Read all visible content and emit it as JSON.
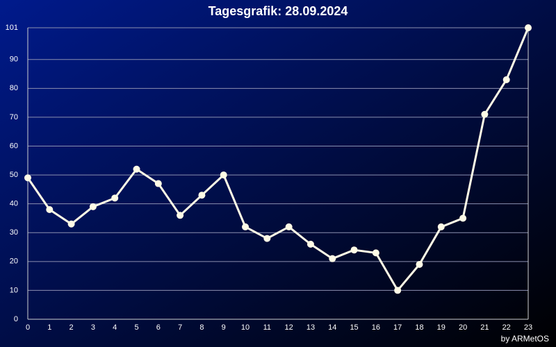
{
  "chart_data": {
    "type": "line",
    "title": "Tagesgrafik: 28.09.2024",
    "credit": "by ARMetOS",
    "x": [
      0,
      1,
      2,
      3,
      4,
      5,
      6,
      7,
      8,
      9,
      10,
      11,
      12,
      13,
      14,
      15,
      16,
      17,
      18,
      19,
      20,
      21,
      22,
      23
    ],
    "series": [
      {
        "color": "#fffbe6",
        "values": [
          49,
          38,
          33,
          39,
          42,
          52,
          47,
          36,
          43,
          50,
          32,
          28,
          32,
          26,
          21,
          24,
          23,
          10,
          19,
          32,
          35,
          71,
          83,
          101
        ]
      }
    ],
    "xlim": [
      0,
      23
    ],
    "xticks": [
      0,
      1,
      2,
      3,
      4,
      5,
      6,
      7,
      8,
      9,
      10,
      11,
      12,
      13,
      14,
      15,
      16,
      17,
      18,
      19,
      20,
      21,
      22,
      23
    ],
    "ylim": [
      0,
      101
    ],
    "yticks": [
      0,
      10,
      20,
      30,
      40,
      50,
      60,
      70,
      80,
      90,
      101
    ],
    "grid": true
  }
}
